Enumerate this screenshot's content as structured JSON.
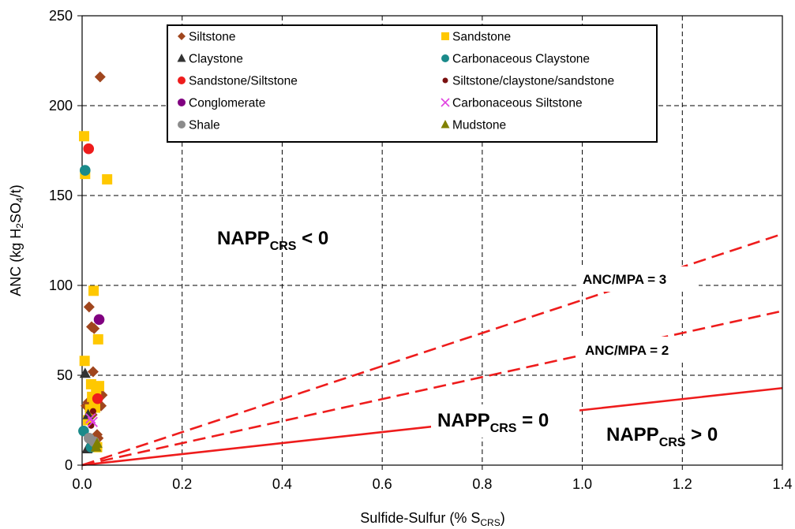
{
  "chart_data": {
    "type": "scatter",
    "xlabel": "Sulfide-Sulfur (% S",
    "xlabel_sub": "CRS",
    "xlabel_close": ")",
    "ylabel": "ANC (kg H",
    "ylabel_sub1": "2",
    "ylabel_mid": "SO",
    "ylabel_sub2": "4",
    "ylabel_close": "/t)",
    "xlim": [
      0,
      1.4
    ],
    "ylim": [
      0,
      250
    ],
    "x_ticks": [
      "0.0",
      "0.2",
      "0.4",
      "0.6",
      "0.8",
      "1.0",
      "1.2",
      "1.4"
    ],
    "y_ticks": [
      "0",
      "50",
      "100",
      "150",
      "200",
      "250"
    ],
    "grid": "dashed",
    "legend_position": "top-center",
    "series": [
      {
        "name": "Siltstone",
        "marker": "diamond",
        "color": "#a0461e",
        "points": [
          [
            0.036,
            216
          ],
          [
            0.014,
            88
          ],
          [
            0.019,
            77
          ],
          [
            0.024,
            76
          ],
          [
            0.022,
            52
          ],
          [
            0.012,
            35
          ],
          [
            0.034,
            38
          ],
          [
            0.04,
            39
          ],
          [
            0.038,
            33
          ],
          [
            0.008,
            33
          ],
          [
            0.032,
            15
          ],
          [
            0.03,
            17
          ],
          [
            0.016,
            30
          ],
          [
            0.02,
            28
          ],
          [
            0.028,
            14
          ]
        ]
      },
      {
        "name": "Sandstone",
        "marker": "square",
        "color": "#ffc800",
        "points": [
          [
            0.004,
            183
          ],
          [
            0.006,
            162
          ],
          [
            0.05,
            159
          ],
          [
            0.023,
            97
          ],
          [
            0.032,
            70
          ],
          [
            0.005,
            58
          ],
          [
            0.018,
            45
          ],
          [
            0.034,
            44
          ],
          [
            0.02,
            38
          ],
          [
            0.028,
            42
          ],
          [
            0.026,
            32
          ],
          [
            0.016,
            31
          ],
          [
            0.012,
            25
          ],
          [
            0.03,
            10
          ],
          [
            0.024,
            34
          ]
        ]
      },
      {
        "name": "Claystone",
        "marker": "triangle",
        "color": "#333333",
        "points": [
          [
            0.006,
            51
          ],
          [
            0.012,
            28
          ],
          [
            0.015,
            11
          ],
          [
            0.01,
            9
          ]
        ]
      },
      {
        "name": "Carbonaceous Claystone",
        "marker": "circle",
        "color": "#1a8a8a",
        "points": [
          [
            0.006,
            164
          ],
          [
            0.003,
            19
          ],
          [
            0.018,
            10
          ]
        ]
      },
      {
        "name": "Sandstone/Siltstone",
        "marker": "circle",
        "color": "#ee1c1c",
        "points": [
          [
            0.013,
            176
          ],
          [
            0.031,
            37
          ]
        ]
      },
      {
        "name": "Siltstone/claystone/sandstone",
        "marker": "smallcircle",
        "color": "#7a1010",
        "points": [
          [
            0.022,
            30
          ],
          [
            0.018,
            22
          ]
        ]
      },
      {
        "name": "Conglomerate",
        "marker": "circle",
        "color": "#800080",
        "points": [
          [
            0.034,
            81
          ]
        ]
      },
      {
        "name": "Carbonaceous Siltstone",
        "marker": "cross",
        "color": "#e040e0",
        "points": [
          [
            0.017,
            26
          ],
          [
            0.021,
            24
          ]
        ]
      },
      {
        "name": "Shale",
        "marker": "circle",
        "color": "#8c8c8c",
        "points": [
          [
            0.014,
            15
          ],
          [
            0.024,
            13
          ]
        ]
      },
      {
        "name": "Mudstone",
        "marker": "triangle",
        "color": "#808000",
        "points": [
          [
            0.03,
            12
          ],
          [
            0.028,
            10
          ]
        ]
      }
    ],
    "reference_lines": [
      {
        "label": "ANC/MPA = 3",
        "style": "dashed",
        "color": "#ee1c1c",
        "slope": 91.875
      },
      {
        "label": "ANC/MPA = 2",
        "style": "dashed",
        "color": "#ee1c1c",
        "slope": 61.25
      },
      {
        "label": "NAPP = 0",
        "style": "solid",
        "color": "#ee1c1c",
        "slope": 30.625
      }
    ],
    "annotations": {
      "napp_lt": {
        "main": "NAPP",
        "sub": "CRS",
        "rest": " <  0"
      },
      "napp_eq": {
        "main": "NAPP",
        "sub": "CRS",
        "rest": " = 0"
      },
      "napp_gt": {
        "main": "NAPP",
        "sub": "CRS",
        "rest": " > 0"
      },
      "mpa3": "ANC/MPA = 3",
      "mpa2": "ANC/MPA = 2"
    }
  }
}
